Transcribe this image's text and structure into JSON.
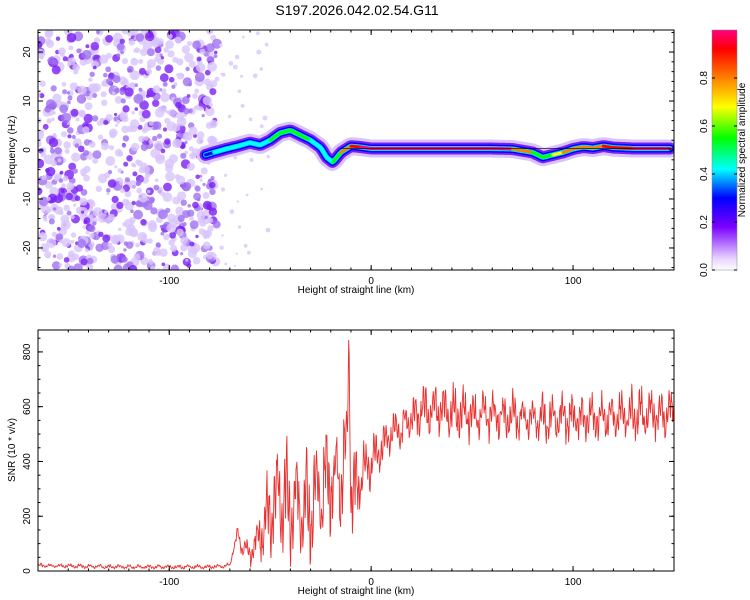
{
  "title": "S197.2026.042.02.54.G11",
  "chart_data": [
    {
      "type": "heatmap",
      "name": "spectrogram",
      "xlabel": "Height of straight line (km)",
      "ylabel": "Frequency (Hz)",
      "xlim": [
        -165,
        150
      ],
      "ylim": [
        -24.5,
        24.5
      ],
      "x_ticks": [
        -100,
        0,
        100
      ],
      "y_ticks": [
        -20,
        -10,
        0,
        10,
        20
      ],
      "colorbar": {
        "label": "Normalized spectral amplitude",
        "range": [
          0.0,
          1.0
        ],
        "ticks": [
          "0.0",
          "0.2",
          "0.4",
          "0.6",
          "0.8"
        ],
        "tick_values": [
          0.0,
          0.2,
          0.4,
          0.6,
          0.8
        ]
      },
      "noise_region_x": [
        -165,
        -80
      ],
      "signal_trace": {
        "x": [
          -82,
          -78,
          -72,
          -66,
          -60,
          -55,
          -50,
          -45,
          -40,
          -35,
          -30,
          -25,
          -22,
          -19,
          -15,
          -10,
          -5,
          0,
          20,
          40,
          60,
          70,
          80,
          85,
          90,
          95,
          100,
          105,
          110,
          115,
          120,
          130,
          140,
          148
        ],
        "y": [
          -1.0,
          -0.5,
          0.2,
          0.8,
          1.5,
          1.0,
          2.0,
          3.5,
          4.0,
          3.0,
          2.0,
          0.5,
          -1.5,
          -2.5,
          -0.5,
          0.8,
          0.6,
          0.3,
          0.3,
          0.3,
          0.3,
          0.2,
          -0.5,
          -1.5,
          -1.0,
          -0.5,
          0.2,
          0.6,
          0.4,
          0.8,
          0.5,
          0.3,
          0.3,
          0.3
        ],
        "amplitude": [
          0.2,
          0.3,
          0.35,
          0.35,
          0.35,
          0.4,
          0.4,
          0.45,
          0.45,
          0.45,
          0.4,
          0.4,
          0.35,
          0.35,
          0.6,
          0.8,
          0.9,
          0.95,
          0.95,
          0.95,
          0.95,
          0.9,
          0.6,
          0.5,
          0.6,
          0.7,
          0.75,
          0.8,
          0.75,
          0.8,
          0.85,
          0.9,
          0.95,
          0.95
        ]
      }
    },
    {
      "type": "line",
      "name": "snr",
      "xlabel": "Height of straight line (km)",
      "ylabel": "SNR (10 * v/v)",
      "xlim": [
        -165,
        150
      ],
      "ylim": [
        0,
        880
      ],
      "x_ticks": [
        -100,
        0,
        100
      ],
      "y_ticks": [
        0,
        200,
        400,
        600,
        800
      ],
      "color": "#e8302e",
      "series": [
        {
          "name": "SNR",
          "x": [
            -165,
            -120,
            -80,
            -70,
            -68,
            -66,
            -65,
            -60,
            -55,
            -50,
            -45,
            -40,
            -35,
            -30,
            -25,
            -20,
            -15,
            -12,
            -11,
            -10,
            -8,
            -5,
            0,
            5,
            10,
            15,
            20,
            25,
            30,
            40,
            50,
            60,
            70,
            80,
            90,
            100,
            110,
            120,
            130,
            140,
            150
          ],
          "y": [
            20,
            15,
            15,
            20,
            90,
            140,
            100,
            60,
            130,
            220,
            280,
            240,
            250,
            230,
            300,
            330,
            350,
            440,
            870,
            300,
            280,
            350,
            400,
            450,
            500,
            520,
            560,
            580,
            590,
            580,
            570,
            570,
            560,
            560,
            550,
            560,
            560,
            565,
            570,
            575,
            575
          ],
          "peak_to_peak_swing": [
            10,
            10,
            10,
            10,
            30,
            30,
            40,
            60,
            120,
            220,
            260,
            240,
            240,
            260,
            280,
            240,
            250,
            260,
            40,
            300,
            200,
            150,
            120,
            100,
            100,
            100,
            100,
            120,
            120,
            120,
            120,
            110,
            110,
            110,
            110,
            110,
            110,
            110,
            120,
            120,
            110
          ]
        }
      ]
    }
  ]
}
